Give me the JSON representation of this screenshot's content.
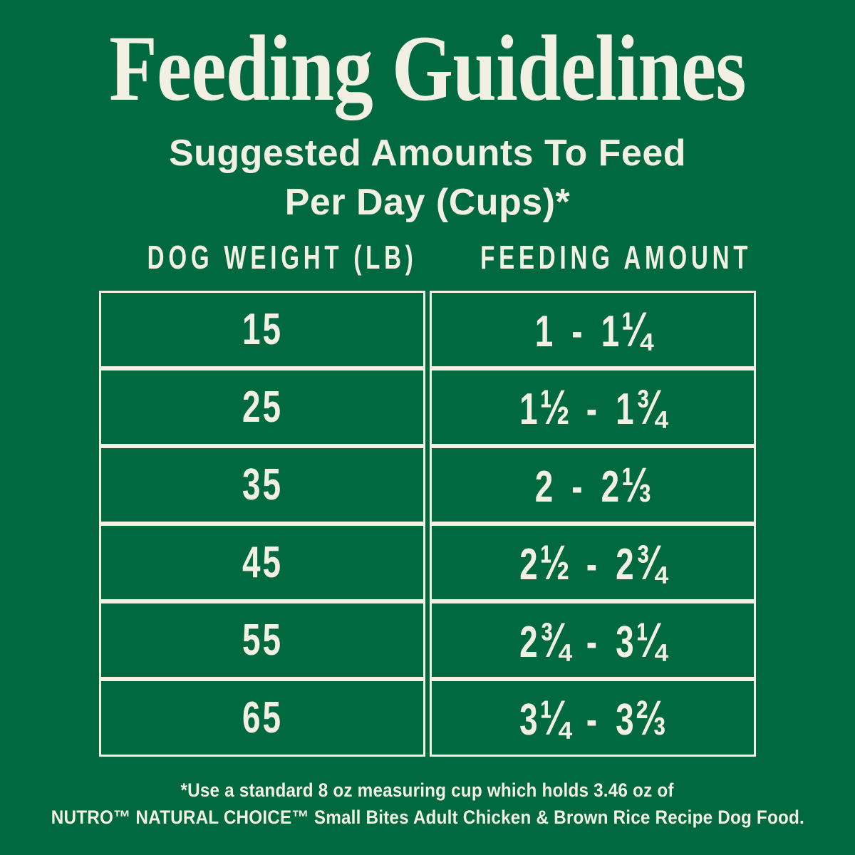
{
  "colors": {
    "background": "#00693F",
    "text": "#F2F0E3"
  },
  "title": "Feeding Guidelines",
  "subtitle_line1": "Suggested Amounts To Feed",
  "subtitle_line2": "Per Day (Cups)*",
  "table": {
    "columns": [
      "DOG WEIGHT (LB)",
      "FEEDING AMOUNT"
    ],
    "rows": [
      {
        "weight": "15",
        "amount": "1 - 1¼"
      },
      {
        "weight": "25",
        "amount": "1½ - 1¾"
      },
      {
        "weight": "35",
        "amount": "2 - 2⅓"
      },
      {
        "weight": "45",
        "amount": "2½ - 2¾"
      },
      {
        "weight": "55",
        "amount": "2¾ - 3¼"
      },
      {
        "weight": "65",
        "amount": "3¼ - 3⅔"
      }
    ]
  },
  "footnote_line1": "*Use a standard 8 oz measuring cup which holds 3.46 oz of",
  "footnote_line2": "NUTRO™ NATURAL CHOICE™ Small Bites Adult Chicken & Brown Rice Recipe Dog Food.",
  "chart_data": {
    "type": "table",
    "title": "Feeding Guidelines",
    "subtitle": "Suggested Amounts To Feed Per Day (Cups)*",
    "columns": [
      "DOG WEIGHT (LB)",
      "FEEDING AMOUNT"
    ],
    "rows": [
      [
        "15",
        "1 - 1¼"
      ],
      [
        "25",
        "1½ - 1¾"
      ],
      [
        "35",
        "2 - 2⅓"
      ],
      [
        "45",
        "2½ - 2¾"
      ],
      [
        "55",
        "2¾ - 3¼"
      ],
      [
        "65",
        "3¼ - 3⅔"
      ]
    ],
    "numeric": {
      "dog_weight_lb": [
        15,
        25,
        35,
        45,
        55,
        65
      ],
      "feeding_cups_min": [
        1,
        1.5,
        2,
        2.5,
        2.75,
        3.25
      ],
      "feeding_cups_max": [
        1.25,
        1.75,
        2.33,
        2.75,
        3.25,
        3.67
      ]
    },
    "footnote": "*Use a standard 8 oz measuring cup which holds 3.46 oz of NUTRO™ NATURAL CHOICE™ Small Bites Adult Chicken & Brown Rice Recipe Dog Food."
  }
}
